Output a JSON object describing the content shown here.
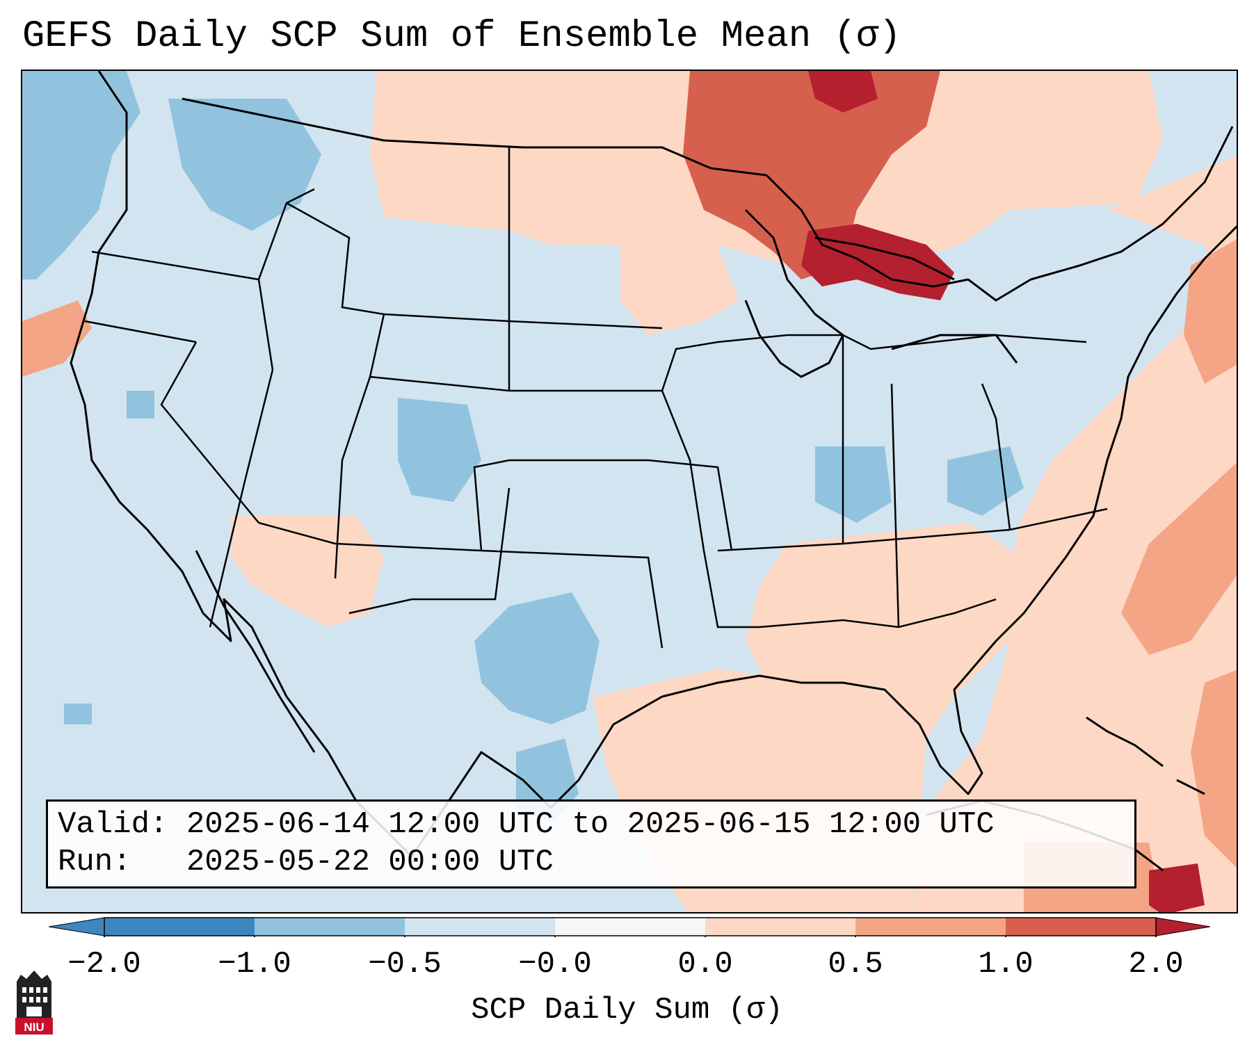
{
  "title": "GEFS Daily SCP Sum of Ensemble Mean (σ)",
  "info": {
    "valid_label": "Valid:",
    "valid_value": "2025-06-14 12:00 UTC to 2025-06-15 12:00 UTC",
    "run_label": "Run:",
    "run_value": "2025-05-22 00:00 UTC"
  },
  "colorbar": {
    "label": "SCP Daily Sum (σ)",
    "ticks": [
      "−2.0",
      "−1.0",
      "−0.5",
      "−0.0",
      "0.0",
      "0.5",
      "1.0",
      "2.0"
    ],
    "colors": [
      "#3d86c0",
      "#92c3de",
      "#d2e4f0",
      "#f6f6f6",
      "#fcd8c5",
      "#f4a585",
      "#d6604d",
      "#b5202f"
    ],
    "extend": "both"
  },
  "legend_colors": {
    "strong_negative": "#3d86c0",
    "negative": "#92c3de",
    "weak_negative": "#d2e4f0",
    "near_zero": "#f6f6f6",
    "weak_positive": "#fcd8c5",
    "positive": "#f4a585",
    "strong_positive": "#d6604d",
    "very_strong_positive": "#b5202f"
  },
  "logo": {
    "text": "NIU"
  }
}
